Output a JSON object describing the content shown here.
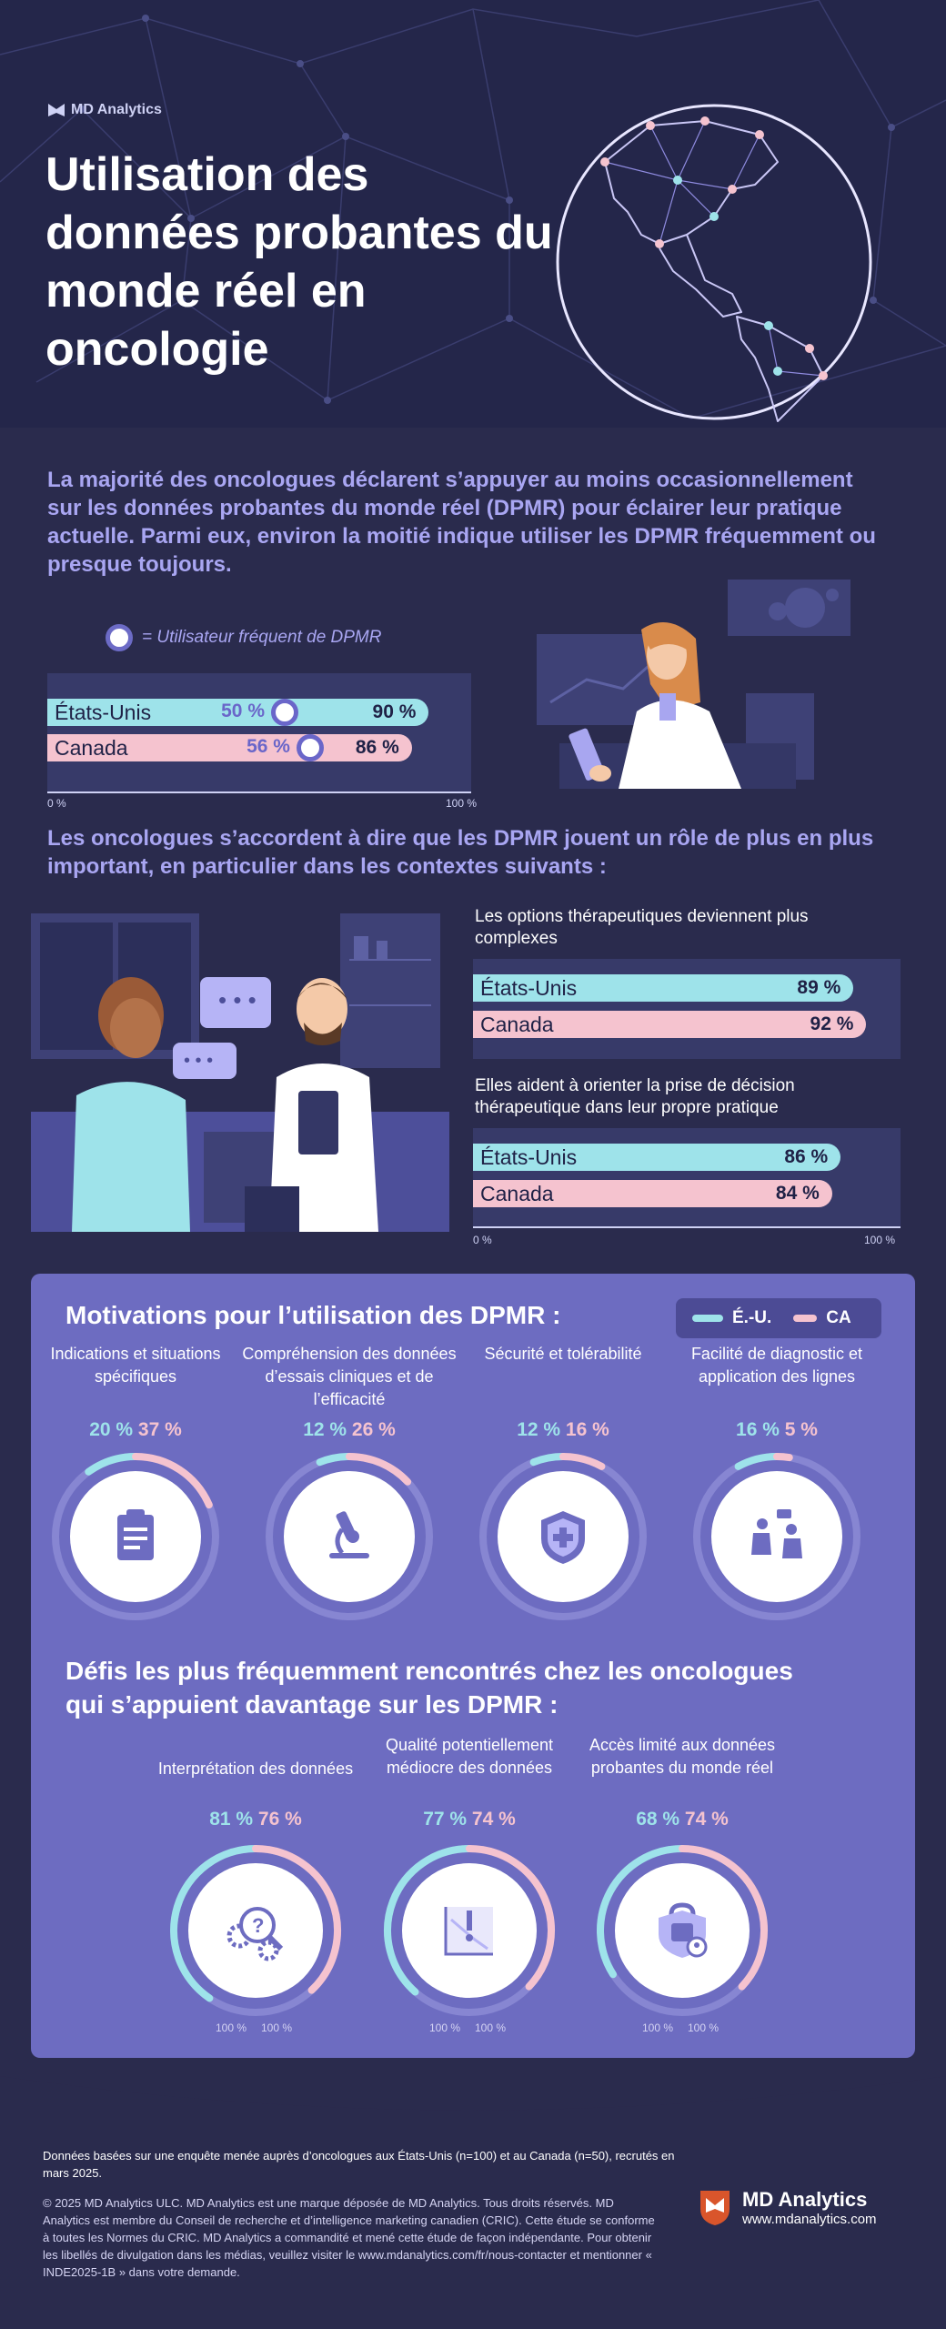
{
  "brand": {
    "name": "MD Analytics",
    "url": "www.mdanalytics.com"
  },
  "title": "Utilisation des données probantes du monde réel en oncologie",
  "intro": "La majorité des oncologues déclarent s’appuyer au moins occasionnellement sur les données probantes du monde réel (DPMR) pour éclairer leur pratique actuelle. Parmi eux, environ la moitié indique utiliser les DPMR fréquemment ou presque toujours.",
  "legend_frequent": "= Utilisateur fréquent de DPMR",
  "axis": {
    "zero": "0 %",
    "hundred": "100 %"
  },
  "agree_text": "Les oncologues s’accordent à dire que les DPMR jouent un rôle de plus en plus important, en particulier dans les contextes suivants :",
  "colors": {
    "us": "#9ee3ea",
    "ca": "#f5c3cf",
    "accent": "#a9a6f2",
    "panel": "#6d6cc1"
  },
  "chart_data": [
    {
      "type": "bar",
      "categories": [
        "États-Unis",
        "Canada"
      ],
      "values": [
        90,
        86
      ],
      "frequent_values": [
        50,
        56
      ],
      "frequent_labels": [
        "50 %",
        "56 %"
      ],
      "value_labels": [
        "90 %",
        "86 %"
      ],
      "ylim": [
        0,
        100
      ]
    },
    {
      "type": "bar",
      "title": "Les options thérapeutiques deviennent plus complexes",
      "categories": [
        "États-Unis",
        "Canada"
      ],
      "values": [
        89,
        92
      ],
      "value_labels": [
        "89 %",
        "92 %"
      ],
      "ylim": [
        0,
        100
      ]
    },
    {
      "type": "bar",
      "title": "Elles aident à orienter la prise de décision thérapeutique dans leur propre pratique",
      "categories": [
        "États-Unis",
        "Canada"
      ],
      "values": [
        86,
        84
      ],
      "value_labels": [
        "86 %",
        "84 %"
      ],
      "ylim": [
        0,
        100
      ]
    },
    {
      "type": "pie",
      "title": "Motivations pour l’utilisation des DPMR :",
      "legend": [
        "É.-U.",
        "CA"
      ],
      "categories": [
        "Indications et situations spécifiques",
        "Compréhension des données d’essais cliniques et de l’efficacité",
        "Sécurité et tolérabilité",
        "Facilité de diagnostic et application des lignes"
      ],
      "series": [
        {
          "name": "É.-U.",
          "values": [
            20,
            12,
            12,
            16
          ]
        },
        {
          "name": "CA",
          "values": [
            37,
            26,
            16,
            5
          ]
        }
      ]
    },
    {
      "type": "pie",
      "title": "Défis les plus fréquemment rencontrés chez les oncologues qui s’appuient davantage sur les DPMR :",
      "legend": [
        "É.-U.",
        "CA"
      ],
      "categories": [
        "Interprétation des données",
        "Qualité potentiellement médiocre des données",
        "Accès limité aux données probantes du monde réel"
      ],
      "series": [
        {
          "name": "É.-U.",
          "values": [
            81,
            77,
            68
          ]
        },
        {
          "name": "CA",
          "values": [
            76,
            74,
            74
          ]
        }
      ]
    }
  ],
  "motivations": {
    "items": [
      {
        "label": "Indications et situations spécifiques",
        "us": "20 %",
        "ca": "37 %",
        "icon": "clipboard-icon"
      },
      {
        "label": "Compréhension des données d’essais cliniques et de l’efficacité",
        "us": "12 %",
        "ca": "26 %",
        "icon": "microscope-icon"
      },
      {
        "label": "Sécurité et tolérabilité",
        "us": "12 %",
        "ca": "16 %",
        "icon": "shield-icon"
      },
      {
        "label": "Facilité de diagnostic et application des lignes",
        "us": "16 %",
        "ca": "5 %",
        "icon": "consultation-icon"
      }
    ]
  },
  "challenges": {
    "items": [
      {
        "label": "Interprétation des données",
        "us": "81 %",
        "ca": "76 %",
        "icon": "question-gear-icon"
      },
      {
        "label": "Qualité potentiellement médiocre des données",
        "us": "77 %",
        "ca": "74 %",
        "icon": "warning-chart-icon"
      },
      {
        "label": "Accès limité aux données probantes du monde réel",
        "us": "68 %",
        "ca": "74 %",
        "icon": "lock-icon"
      }
    ]
  },
  "footer": {
    "note": "Données basées sur une enquête menée auprès d’oncologues aux États-Unis (n=100) et au Canada (n=50), recrutés en mars 2025.",
    "legal": "© 2025 MD Analytics ULC. MD Analytics est une marque déposée de MD Analytics. Tous droits réservés. MD Analytics est membre du Conseil de recherche et d’intelligence marketing canadien (CRIC). Cette étude se conforme à toutes les Normes du CRIC. MD Analytics a commandité et mené cette étude de façon indépendante. Pour obtenir les libellés de divulgation dans les médias, veuillez visiter le www.mdanalytics.com/fr/nous-contacter et mentionner « INDE2025-1B » dans votre demande."
  }
}
